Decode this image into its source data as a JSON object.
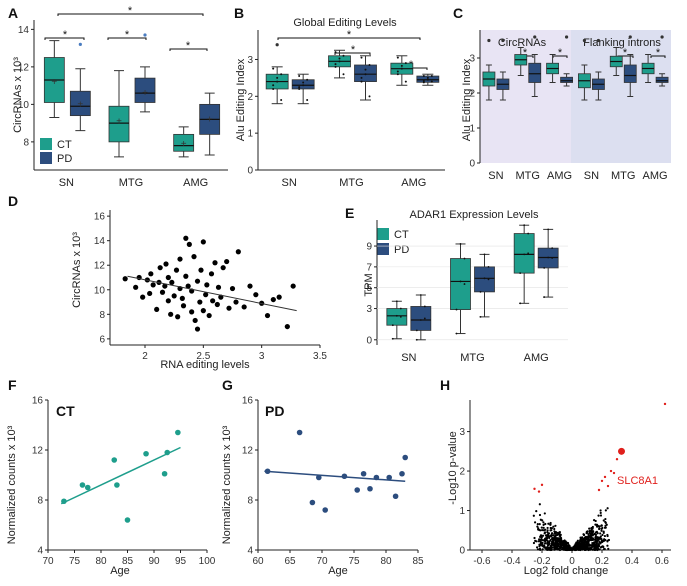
{
  "colors": {
    "ct": "#1e9e8c",
    "pd": "#2c4d7e",
    "axis": "#222222",
    "dot": "#000000",
    "sig": "#e0201c",
    "flank_bg": "#dcdff0",
    "circ_bg": "#e8e4f4",
    "ct_line": "#1e9e8c",
    "pd_line": "#2c4d7e"
  },
  "panels": {
    "A": {
      "letter": "A",
      "ylabel": "CircRNAs x 10³",
      "yticks": [
        "8",
        "10",
        "12",
        "14"
      ],
      "categories": [
        "SN",
        "MTG",
        "AMG"
      ],
      "legend": [
        "CT",
        "PD"
      ],
      "stars": [
        "*",
        "*",
        "*",
        "*"
      ]
    },
    "B": {
      "letter": "B",
      "title": "Global Editing Levels",
      "ylabel": "Alu Editing Index",
      "yticks": [
        "0",
        "1",
        "2",
        "3"
      ],
      "categories": [
        "SN",
        "MTG",
        "AMG"
      ],
      "stars": [
        "*",
        "*",
        "*"
      ]
    },
    "C": {
      "letter": "C",
      "group_labels": [
        "CircRNAs",
        "Flanking introns"
      ],
      "ylabel": "Alu Editing Index",
      "yticks": [
        "0",
        "1",
        "2",
        "3"
      ],
      "categories": [
        "SN",
        "MTG",
        "AMG",
        "SN",
        "MTG",
        "AMG"
      ],
      "stars": [
        "*",
        "*",
        "*",
        "*",
        "*"
      ]
    },
    "D": {
      "letter": "D",
      "ylabel": "CircRNAs x 10³",
      "xlabel": "RNA editing levels",
      "yticks": [
        "6",
        "8",
        "10",
        "12",
        "14",
        "16"
      ],
      "xticks": [
        "2",
        "2.5",
        "3",
        "3.5"
      ]
    },
    "E": {
      "letter": "E",
      "title": "ADAR1 Expression Levels",
      "ylabel": "TPM",
      "yticks": [
        "0",
        "3",
        "5",
        "7",
        "9"
      ],
      "categories": [
        "SN",
        "MTG",
        "AMG"
      ],
      "legend": [
        "CT",
        "PD"
      ]
    },
    "F": {
      "letter": "F",
      "tag": "CT",
      "ylabel": "Normalized counts x 10³",
      "xlabel": "Age",
      "yticks": [
        "4",
        "8",
        "12",
        "16"
      ],
      "xticks": [
        "70",
        "75",
        "80",
        "85",
        "90",
        "95",
        "100"
      ]
    },
    "G": {
      "letter": "G",
      "tag": "PD",
      "ylabel": "Normalized counts x 10³",
      "xlabel": "Age",
      "yticks": [
        "4",
        "8",
        "12",
        "16"
      ],
      "xticks": [
        "60",
        "65",
        "70",
        "75",
        "80",
        "85"
      ]
    },
    "H": {
      "letter": "H",
      "ylabel": "-Log10 p-value",
      "xlabel": "Log2 fold change",
      "yticks": [
        "0",
        "1",
        "2",
        "3"
      ],
      "xticks": [
        "-0.6",
        "-0.4",
        "-0.2",
        "0",
        "0.2",
        "0.4",
        "0.6"
      ],
      "gene_label": "SLC8A1"
    }
  },
  "chart_data": [
    {
      "panel": "A",
      "type": "box",
      "categories": [
        "SN",
        "MTG",
        "AMG"
      ],
      "ylim": [
        6.5,
        14.5
      ],
      "series": [
        {
          "name": "CT",
          "boxes": [
            {
              "min": 9.3,
              "q1": 10.1,
              "median": 11.3,
              "q3": 12.5,
              "max": 13.4,
              "mean": 11.2
            },
            {
              "min": 7.2,
              "q1": 8.0,
              "median": 9.0,
              "q3": 9.9,
              "max": 11.8,
              "mean": 9.1
            },
            {
              "min": 7.2,
              "q1": 7.5,
              "median": 7.8,
              "q3": 8.4,
              "max": 8.8,
              "mean": 7.9
            }
          ]
        },
        {
          "name": "PD",
          "boxes": [
            {
              "min": 8.6,
              "q1": 9.4,
              "median": 9.9,
              "q3": 10.7,
              "max": 11.9,
              "mean": 10.0,
              "outliers": [
                13.2
              ]
            },
            {
              "min": 9.6,
              "q1": 10.1,
              "median": 10.6,
              "q3": 11.4,
              "max": 12.0,
              "mean": 10.6,
              "outliers": [
                13.7
              ]
            },
            {
              "min": 7.3,
              "q1": 8.4,
              "median": 9.2,
              "q3": 10.0,
              "max": 10.6,
              "mean": 9.2
            }
          ]
        }
      ]
    },
    {
      "panel": "B",
      "type": "box",
      "categories": [
        "SN",
        "MTG",
        "AMG"
      ],
      "ylim": [
        0,
        3.8
      ],
      "series": [
        {
          "name": "CT",
          "boxes": [
            {
              "min": 1.8,
              "q1": 2.2,
              "median": 2.4,
              "q3": 2.6,
              "max": 2.8,
              "outliers": [
                3.4
              ]
            },
            {
              "min": 2.5,
              "q1": 2.8,
              "median": 2.95,
              "q3": 3.1,
              "max": 3.25
            },
            {
              "min": 2.3,
              "q1": 2.6,
              "median": 2.75,
              "q3": 2.9,
              "max": 3.1
            }
          ]
        },
        {
          "name": "PD",
          "boxes": [
            {
              "min": 1.8,
              "q1": 2.2,
              "median": 2.3,
              "q3": 2.45,
              "max": 2.6
            },
            {
              "min": 1.9,
              "q1": 2.4,
              "median": 2.6,
              "q3": 2.85,
              "max": 3.1
            },
            {
              "min": 2.3,
              "q1": 2.38,
              "median": 2.45,
              "q3": 2.55,
              "max": 2.6
            }
          ]
        }
      ]
    },
    {
      "panel": "C",
      "type": "box",
      "categories": [
        "SN",
        "MTG",
        "AMG",
        "SN",
        "MTG",
        "AMG"
      ],
      "groups": [
        "CircRNAs",
        "Flanking introns"
      ],
      "ylim": [
        0,
        3.8
      ],
      "series": [
        {
          "name": "CT",
          "boxes": [
            {
              "min": 1.8,
              "q1": 2.2,
              "median": 2.4,
              "q3": 2.6,
              "max": 2.8,
              "outliers": [
                3.5
              ]
            },
            {
              "min": 2.5,
              "q1": 2.8,
              "median": 2.95,
              "q3": 3.1,
              "max": 3.3
            },
            {
              "min": 2.3,
              "q1": 2.55,
              "median": 2.7,
              "q3": 2.85,
              "max": 3.1
            },
            {
              "min": 1.8,
              "q1": 2.15,
              "median": 2.35,
              "q3": 2.55,
              "max": 2.8,
              "outliers": [
                3.5
              ]
            },
            {
              "min": 2.5,
              "q1": 2.75,
              "median": 2.9,
              "q3": 3.05,
              "max": 3.3
            },
            {
              "min": 2.3,
              "q1": 2.55,
              "median": 2.7,
              "q3": 2.85,
              "max": 3.1
            }
          ]
        },
        {
          "name": "PD",
          "boxes": [
            {
              "min": 1.8,
              "q1": 2.1,
              "median": 2.25,
              "q3": 2.4,
              "max": 2.6,
              "outliers": [
                3.5
              ]
            },
            {
              "min": 1.9,
              "q1": 2.3,
              "median": 2.55,
              "q3": 2.85,
              "max": 3.1,
              "outliers": [
                3.6
              ]
            },
            {
              "min": 2.2,
              "q1": 2.3,
              "median": 2.35,
              "q3": 2.45,
              "max": 2.55,
              "outliers": [
                3.6
              ]
            },
            {
              "min": 1.8,
              "q1": 2.1,
              "median": 2.25,
              "q3": 2.4,
              "max": 2.6,
              "outliers": [
                3.5
              ]
            },
            {
              "min": 1.9,
              "q1": 2.3,
              "median": 2.5,
              "q3": 2.8,
              "max": 3.1,
              "outliers": [
                3.6
              ]
            },
            {
              "min": 2.2,
              "q1": 2.3,
              "median": 2.35,
              "q3": 2.45,
              "max": 2.55,
              "outliers": [
                3.6
              ]
            }
          ]
        }
      ]
    },
    {
      "panel": "D",
      "type": "scatter",
      "xlim": [
        1.7,
        3.5
      ],
      "ylim": [
        5.5,
        16.5
      ],
      "x": [
        1.83,
        1.92,
        1.95,
        1.98,
        2.02,
        2.04,
        2.05,
        2.07,
        2.1,
        2.12,
        2.13,
        2.15,
        2.17,
        2.18,
        2.2,
        2.2,
        2.22,
        2.23,
        2.25,
        2.27,
        2.28,
        2.3,
        2.3,
        2.32,
        2.33,
        2.35,
        2.35,
        2.37,
        2.38,
        2.4,
        2.4,
        2.42,
        2.43,
        2.45,
        2.45,
        2.47,
        2.48,
        2.5,
        2.5,
        2.52,
        2.53,
        2.55,
        2.57,
        2.58,
        2.6,
        2.62,
        2.63,
        2.65,
        2.67,
        2.7,
        2.72,
        2.75,
        2.78,
        2.8,
        2.85,
        2.9,
        2.95,
        3.0,
        3.05,
        3.1,
        3.15,
        3.22,
        3.27
      ],
      "y": [
        10.9,
        10.2,
        11.0,
        9.4,
        10.8,
        9.7,
        11.3,
        10.4,
        8.4,
        10.6,
        11.8,
        9.8,
        10.3,
        12.1,
        9.1,
        11.0,
        8.0,
        10.6,
        9.5,
        11.6,
        7.8,
        10.1,
        12.5,
        9.3,
        8.7,
        11.1,
        14.2,
        10.3,
        13.7,
        8.2,
        9.9,
        12.7,
        7.5,
        10.7,
        6.8,
        9.0,
        11.6,
        8.3,
        13.9,
        9.6,
        10.4,
        7.9,
        11.3,
        9.1,
        12.2,
        8.8,
        10.2,
        9.4,
        11.8,
        12.3,
        8.5,
        10.1,
        9.0,
        13.1,
        8.6,
        10.3,
        9.6,
        8.9,
        7.9,
        9.2,
        9.4,
        7.0,
        10.3
      ],
      "fit": [
        [
          1.85,
          11.1
        ],
        [
          3.3,
          8.3
        ]
      ]
    },
    {
      "panel": "E",
      "type": "box",
      "categories": [
        "SN",
        "MTG",
        "AMG"
      ],
      "ylim": [
        -0.5,
        11.5
      ],
      "series": [
        {
          "name": "CT",
          "boxes": [
            {
              "min": 0.1,
              "q1": 1.4,
              "median": 2.3,
              "q3": 3.0,
              "max": 3.7
            },
            {
              "min": 0.6,
              "q1": 2.9,
              "median": 5.6,
              "q3": 7.8,
              "max": 9.2
            },
            {
              "min": 3.5,
              "q1": 6.4,
              "median": 8.2,
              "q3": 10.2,
              "max": 11.0
            }
          ]
        },
        {
          "name": "PD",
          "boxes": [
            {
              "min": 0.0,
              "q1": 0.9,
              "median": 1.9,
              "q3": 3.2,
              "max": 4.3
            },
            {
              "min": 2.2,
              "q1": 4.6,
              "median": 5.9,
              "q3": 7.0,
              "max": 8.2
            },
            {
              "min": 4.1,
              "q1": 6.9,
              "median": 7.9,
              "q3": 8.8,
              "max": 10.6
            }
          ]
        }
      ]
    },
    {
      "panel": "F",
      "type": "scatter",
      "xlim": [
        70,
        100
      ],
      "ylim": [
        4,
        16
      ],
      "x": [
        73,
        76.5,
        77.5,
        82.5,
        83,
        85,
        88.5,
        92,
        92.5,
        94.5
      ],
      "y": [
        7.9,
        9.2,
        9.0,
        11.2,
        9.2,
        6.4,
        11.7,
        10.1,
        11.8,
        13.4
      ],
      "fit": [
        [
          72.5,
          7.7
        ],
        [
          95,
          12.2
        ]
      ]
    },
    {
      "panel": "G",
      "type": "scatter",
      "xlim": [
        60,
        85
      ],
      "ylim": [
        4,
        16
      ],
      "x": [
        61.5,
        66.5,
        68.5,
        69.5,
        70.5,
        73.5,
        75.5,
        76.5,
        77.5,
        78.5,
        80.5,
        81.5,
        82.5,
        83
      ],
      "y": [
        10.3,
        13.4,
        7.8,
        9.8,
        7.2,
        9.9,
        8.8,
        10.1,
        8.9,
        9.8,
        9.8,
        8.3,
        10.1,
        11.4
      ],
      "fit": [
        [
          61,
          10.3
        ],
        [
          83,
          9.5
        ]
      ]
    },
    {
      "panel": "H",
      "type": "volcano",
      "xlim": [
        -0.68,
        0.66
      ],
      "ylim": [
        0,
        3.8
      ],
      "highlight": {
        "label": "SLC8A1",
        "x": 0.33,
        "y": 2.5
      }
    }
  ]
}
